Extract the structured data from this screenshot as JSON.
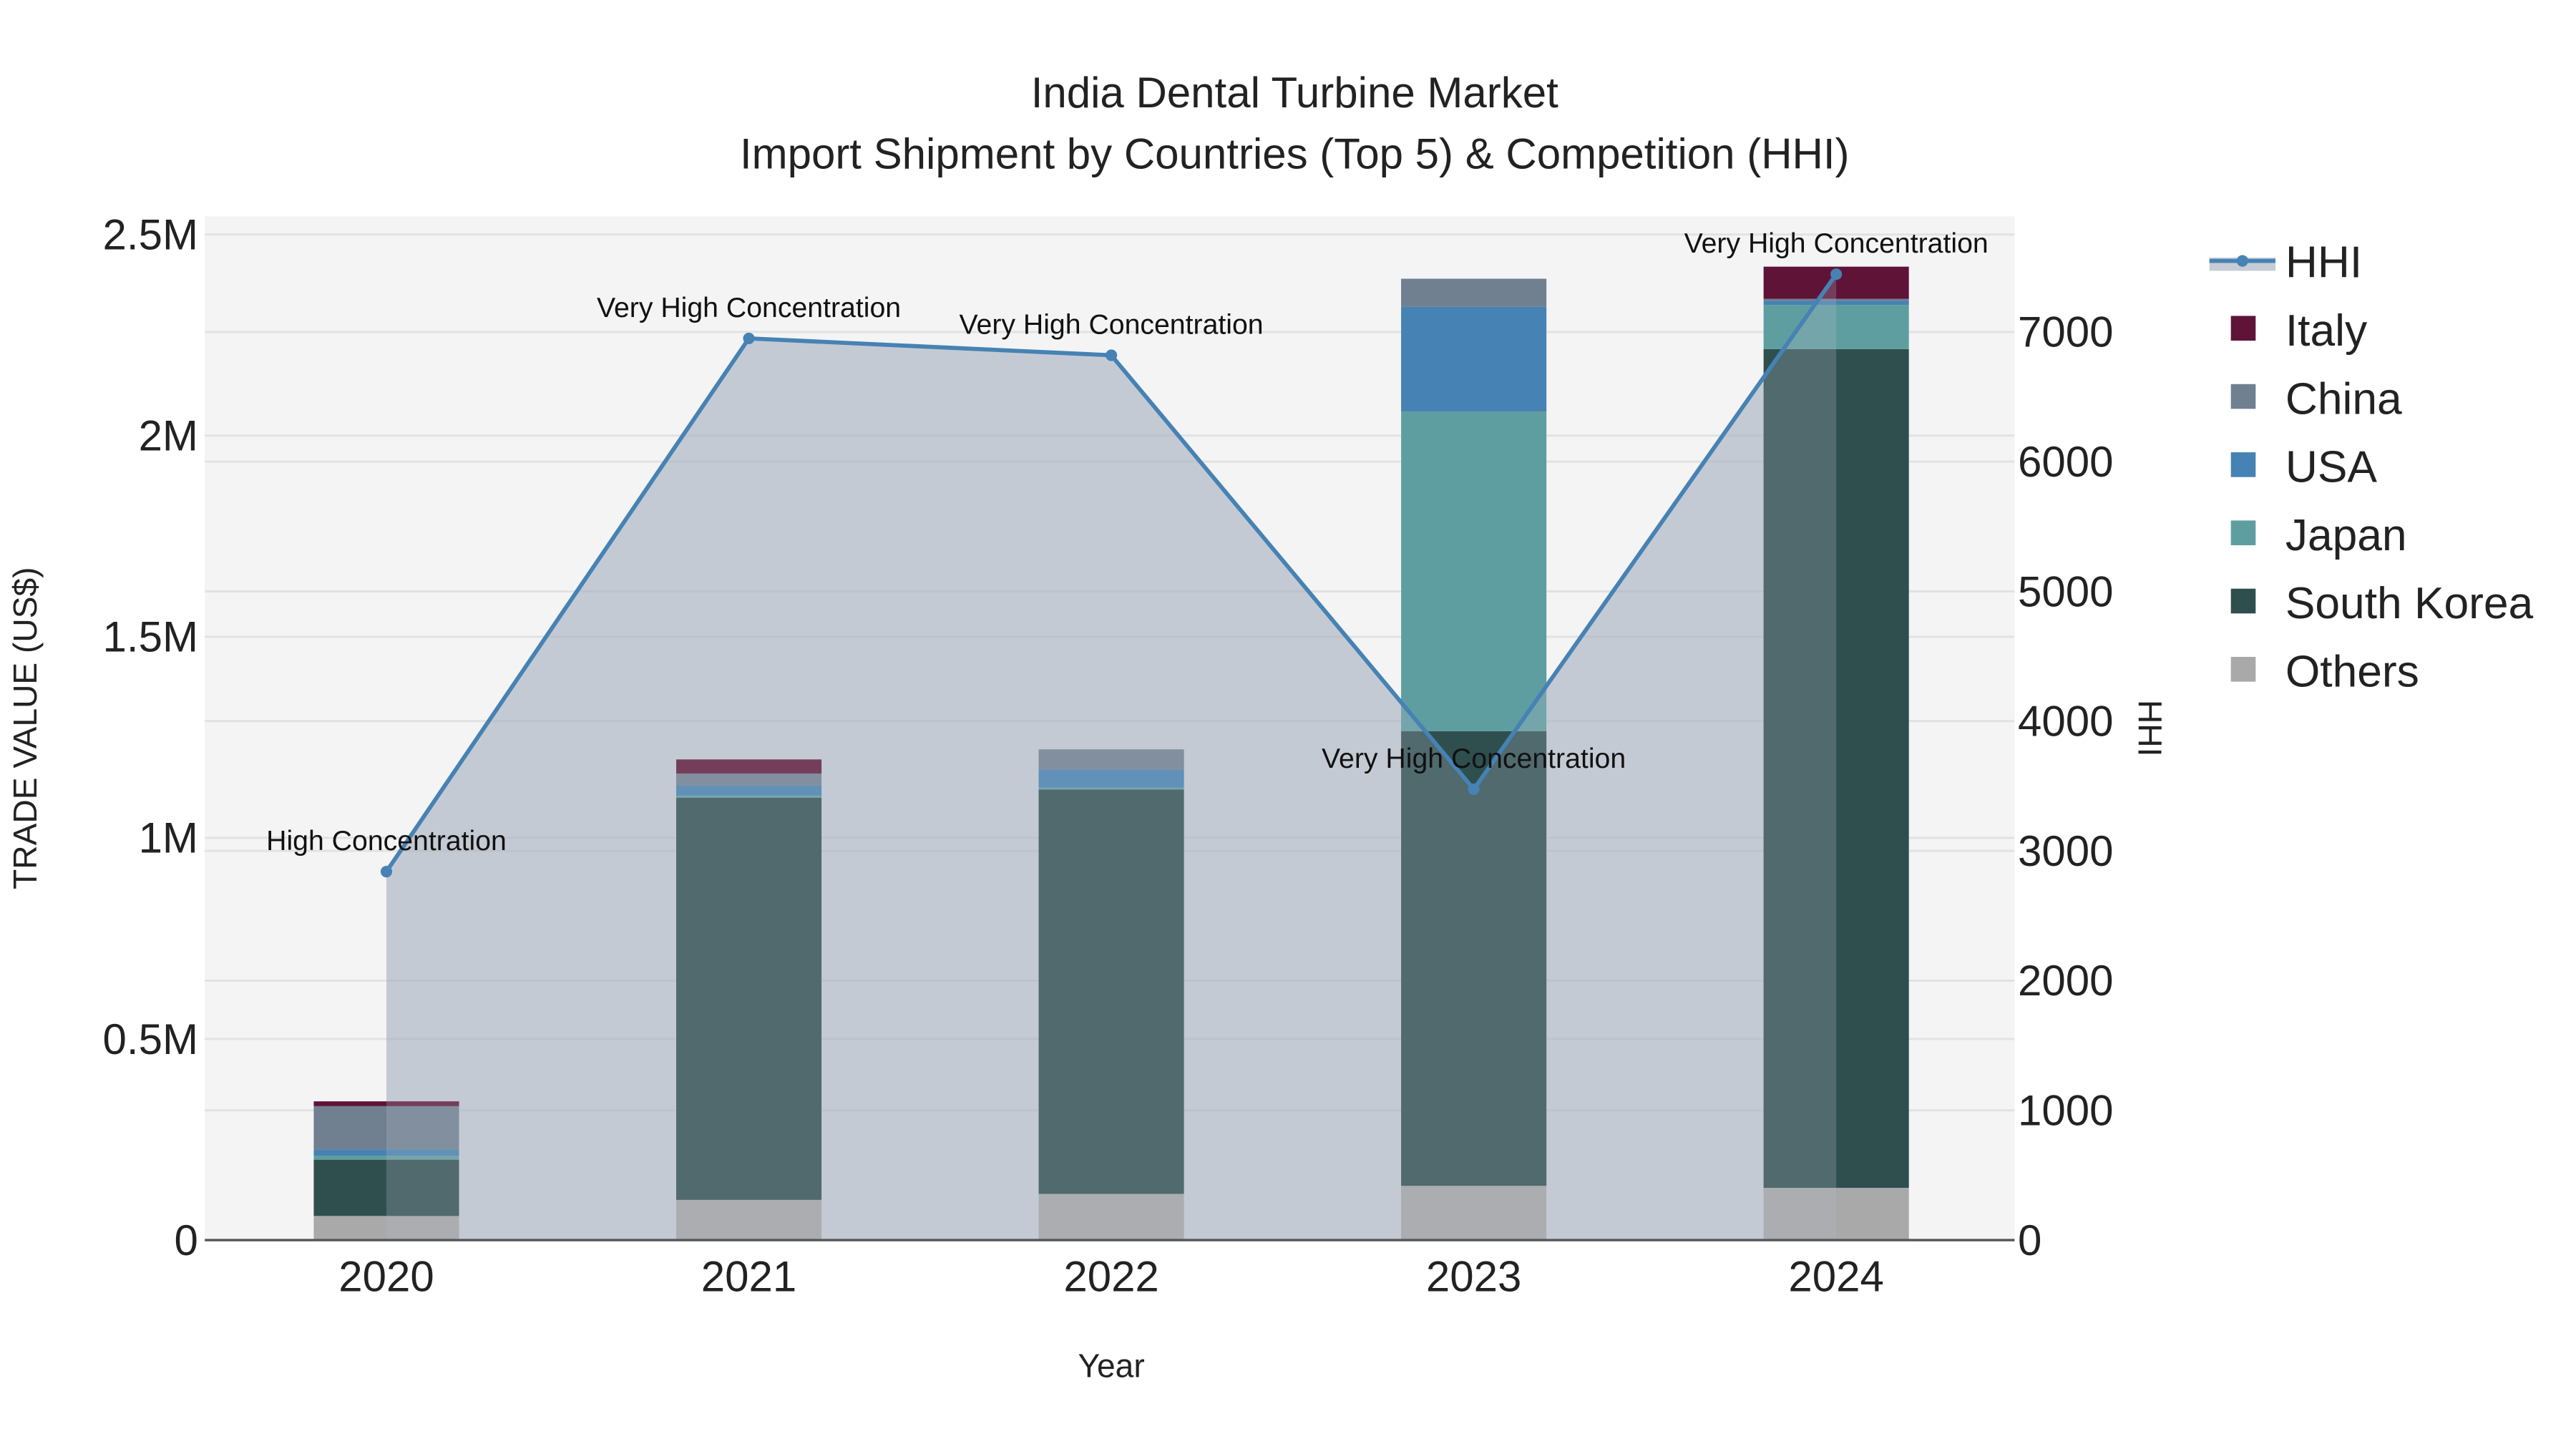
{
  "chart_data": {
    "type": "bar",
    "title": "India Dental Turbine Market",
    "subtitle": "Import Shipment by Countries (Top 5) & Competition (HHI)",
    "xlabel": "Year",
    "ylabel": "TRADE VALUE (US$)",
    "y2label": "HHI",
    "categories": [
      "2020",
      "2021",
      "2022",
      "2023",
      "2024"
    ],
    "ylim": [
      0,
      2500000
    ],
    "y_ticks": [
      {
        "v": 0,
        "label": "0"
      },
      {
        "v": 500000,
        "label": "0.5M"
      },
      {
        "v": 1000000,
        "label": "1M"
      },
      {
        "v": 1500000,
        "label": "1.5M"
      },
      {
        "v": 2000000,
        "label": "2M"
      },
      {
        "v": 2500000,
        "label": "2.5M"
      }
    ],
    "y2lim": [
      0,
      7800
    ],
    "y2_ticks": [
      0,
      1000,
      2000,
      3000,
      4000,
      5000,
      6000,
      7000
    ],
    "series": [
      {
        "name": "Others",
        "color": "#A9A9A9",
        "values": [
          60000,
          100000,
          115000,
          135000,
          130000
        ]
      },
      {
        "name": "South Korea",
        "color": "#2F4F4F",
        "values": [
          140000,
          1000000,
          1005000,
          1130000,
          2085000
        ]
      },
      {
        "name": "Japan",
        "color": "#5F9EA0",
        "values": [
          10000,
          5000,
          5000,
          795000,
          110000
        ]
      },
      {
        "name": "USA",
        "color": "#4682B4",
        "values": [
          15000,
          25000,
          45000,
          260000,
          10000
        ]
      },
      {
        "name": "China",
        "color": "#708090",
        "values": [
          108000,
          30000,
          50000,
          70000,
          5000
        ]
      },
      {
        "name": "Italy",
        "color": "#5F1437",
        "values": [
          12000,
          35000,
          0,
          0,
          80000
        ]
      }
    ],
    "hhi": {
      "name": "HHI",
      "color": "#4682B4",
      "values": [
        2840,
        6950,
        6820,
        3475,
        7445
      ],
      "labels": [
        "High Concentration",
        "Very High Concentration",
        "Very High Concentration",
        "Very High Concentration",
        "Very High Concentration"
      ]
    },
    "legend_order": [
      "HHI",
      "Italy",
      "China",
      "USA",
      "Japan",
      "South Korea",
      "Others"
    ],
    "legend_position": "right",
    "grid": true
  }
}
